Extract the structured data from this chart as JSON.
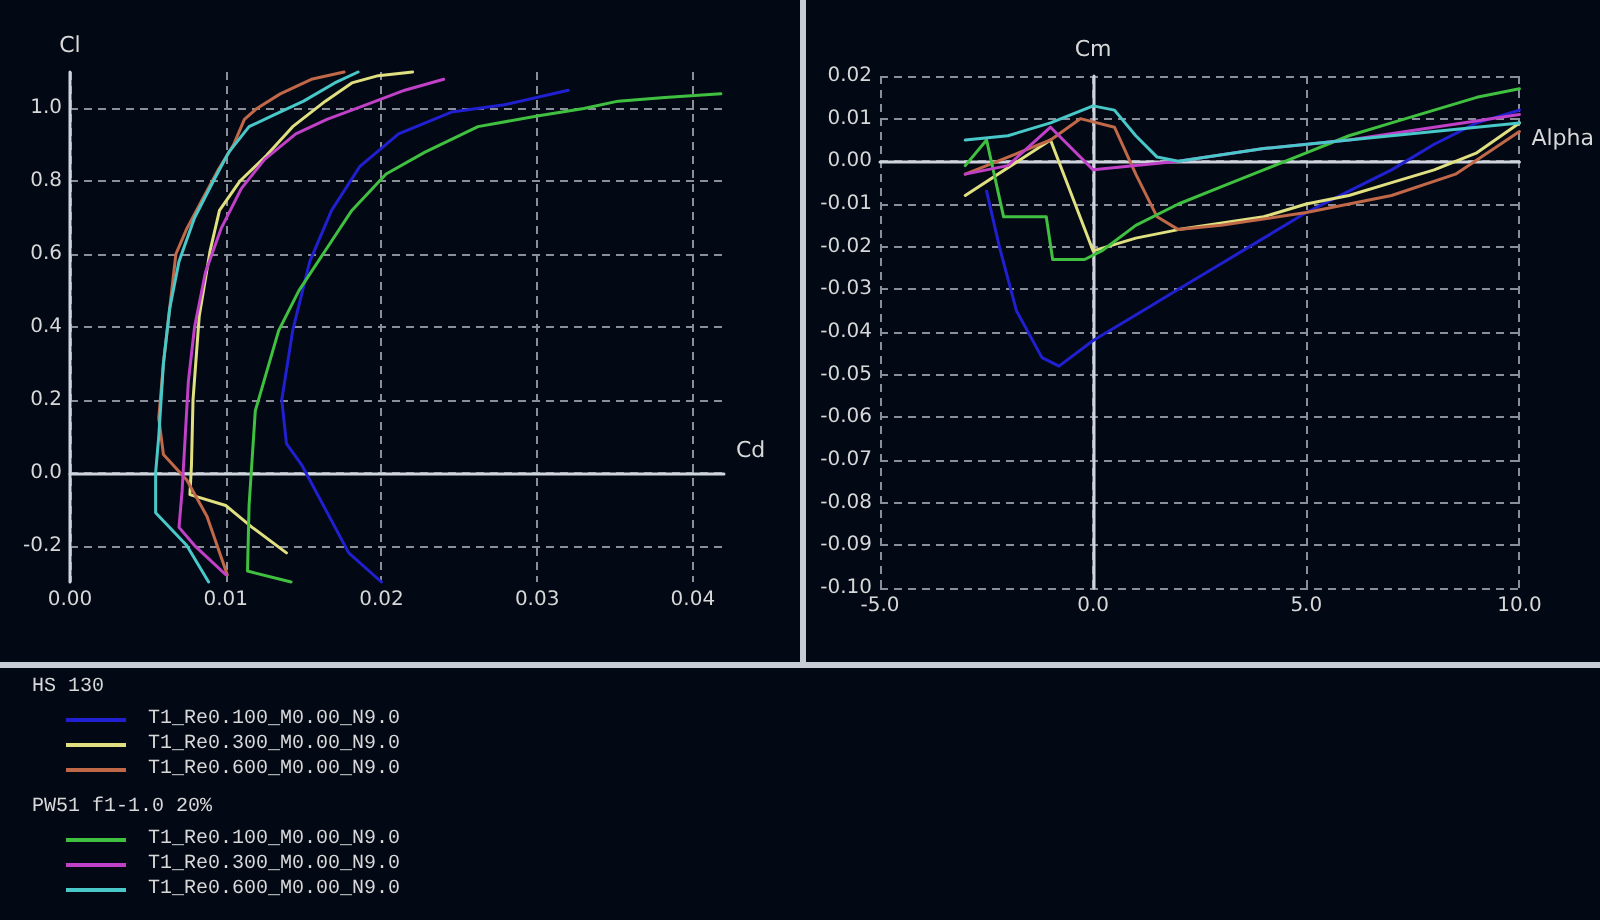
{
  "chart_data": [
    {
      "type": "line",
      "xlabel": "Cd",
      "ylabel": "Cl",
      "xlim": [
        0,
        0.042
      ],
      "ylim": [
        -0.3,
        1.1
      ],
      "xticks": [
        {
          "value": 0,
          "label": "0.00"
        },
        0.01,
        0.02,
        0.03,
        0.04
      ],
      "yticks": [
        -0.2,
        {
          "value": 0,
          "label": "0.0"
        },
        0.2,
        0.4,
        0.6,
        0.8,
        {
          "value": 1,
          "label": "1.0"
        }
      ],
      "grid": true,
      "legend": "bottom",
      "marker": "none",
      "line_style": "solid",
      "annotations": [
        "HS 130",
        "PW51 f1-1.0 20%"
      ],
      "series": [
        {
          "name": "T1_Re0.100_M0.00_N9.0",
          "color": "#2020d0",
          "x": [
            0.02,
            0.0179,
            0.0149,
            0.0139,
            0.0136,
            0.0143,
            0.0154,
            0.0168,
            0.0186,
            0.0211,
            0.0245,
            0.0279,
            0.032
          ],
          "values": [
            -0.3,
            -0.22,
            0.02,
            0.08,
            0.2,
            0.39,
            0.58,
            0.72,
            0.84,
            0.93,
            0.99,
            1.01,
            1.05
          ]
        },
        {
          "name": "T1_Re0.300_M0.00_N9.0",
          "color": "#e0e080",
          "x": [
            0.0139,
            0.0117,
            0.01,
            0.0077,
            0.0078,
            0.0079,
            0.0083,
            0.009,
            0.0096,
            0.0109,
            0.0126,
            0.0143,
            0.0164,
            0.0181,
            0.0198,
            0.022
          ],
          "values": [
            -0.22,
            -0.15,
            -0.09,
            -0.06,
            0.02,
            0.2,
            0.43,
            0.61,
            0.72,
            0.8,
            0.87,
            0.95,
            1.02,
            1.07,
            1.09,
            1.1
          ]
        },
        {
          "name": "T1_Re0.600_M0.00_N9.0",
          "color": "#c06848",
          "x": [
            0.0101,
            0.0088,
            0.0075,
            0.006,
            0.0057,
            0.006,
            0.0064,
            0.0068,
            0.0075,
            0.0085,
            0.0095,
            0.0105,
            0.0112,
            0.012,
            0.0135,
            0.0155,
            0.0176
          ],
          "values": [
            -0.28,
            -0.12,
            -0.02,
            0.05,
            0.15,
            0.3,
            0.45,
            0.6,
            0.67,
            0.75,
            0.83,
            0.9,
            0.97,
            1.0,
            1.04,
            1.08,
            1.1
          ]
        },
        {
          "name": "T1_Re0.100_M0.00_N9.0",
          "color": "#40c040",
          "x": [
            0.0142,
            0.0114,
            0.0115,
            0.0119,
            0.0134,
            0.0147,
            0.0164,
            0.0181,
            0.0203,
            0.0228,
            0.0262,
            0.0301,
            0.033,
            0.0352,
            0.0382,
            0.0418
          ],
          "values": [
            -0.3,
            -0.27,
            -0.09,
            0.17,
            0.39,
            0.5,
            0.61,
            0.72,
            0.82,
            0.88,
            0.95,
            0.98,
            1.0,
            1.02,
            1.03,
            1.04
          ]
        },
        {
          "name": "T1_Re0.300_M0.00_N9.0",
          "color": "#c040c8",
          "x": [
            0.01,
            0.008,
            0.007,
            0.0072,
            0.0074,
            0.0076,
            0.008,
            0.0087,
            0.0097,
            0.011,
            0.0125,
            0.0145,
            0.0165,
            0.019,
            0.0215,
            0.024
          ],
          "values": [
            -0.28,
            -0.2,
            -0.15,
            -0.05,
            0.1,
            0.25,
            0.4,
            0.55,
            0.67,
            0.78,
            0.86,
            0.93,
            0.97,
            1.01,
            1.05,
            1.08
          ]
        },
        {
          "name": "T1_Re0.600_M0.00_N9.0",
          "color": "#48c8c8",
          "x": [
            0.0089,
            0.0075,
            0.0055,
            0.0055,
            0.0057,
            0.006,
            0.0064,
            0.007,
            0.008,
            0.0092,
            0.0102,
            0.0115,
            0.013,
            0.015,
            0.017,
            0.0185
          ],
          "values": [
            -0.3,
            -0.2,
            -0.11,
            0.0,
            0.1,
            0.3,
            0.45,
            0.58,
            0.7,
            0.8,
            0.88,
            0.95,
            0.98,
            1.02,
            1.07,
            1.1
          ]
        }
      ]
    },
    {
      "type": "line",
      "xlabel": "Alpha",
      "ylabel": "Cm",
      "xlim": [
        -5,
        10
      ],
      "ylim": [
        -0.1,
        0.02
      ],
      "xticks": [
        {
          "value": -5,
          "label": "-5.0"
        },
        {
          "value": 0,
          "label": "0.0"
        },
        {
          "value": 5,
          "label": "5.0"
        },
        {
          "value": 10,
          "label": "10.0"
        }
      ],
      "yticks": [
        {
          "value": -0.1,
          "label": "-0.10"
        },
        -0.09,
        -0.08,
        -0.07,
        -0.06,
        -0.05,
        -0.04,
        -0.03,
        -0.02,
        -0.01,
        {
          "value": 0,
          "label": "0.00"
        },
        0.01,
        0.02
      ],
      "grid": true,
      "marker": "none",
      "line_style": "solid",
      "series": [
        {
          "color": "#2020d0",
          "x": [
            -2.5,
            -2.2,
            -1.8,
            -1.2,
            -0.8,
            0,
            1,
            2,
            3,
            4,
            5,
            6,
            7,
            8,
            9,
            10
          ],
          "values": [
            -0.007,
            -0.02,
            -0.035,
            -0.046,
            -0.048,
            -0.042,
            -0.036,
            -0.03,
            -0.024,
            -0.018,
            -0.012,
            -0.007,
            -0.002,
            0.004,
            0.009,
            0.012
          ]
        },
        {
          "color": "#e0e080",
          "x": [
            -3,
            -1,
            0,
            1,
            2,
            4,
            5,
            6,
            7,
            8,
            9,
            10
          ],
          "values": [
            -0.008,
            0.005,
            -0.021,
            -0.018,
            -0.016,
            -0.013,
            -0.01,
            -0.008,
            -0.005,
            -0.002,
            0.002,
            0.009
          ]
        },
        {
          "color": "#c06848",
          "x": [
            -3,
            -1,
            -0.3,
            0.5,
            1,
            1.5,
            2,
            3,
            5,
            7,
            8.5,
            10
          ],
          "values": [
            -0.003,
            0.005,
            0.01,
            0.008,
            -0.003,
            -0.013,
            -0.016,
            -0.015,
            -0.012,
            -0.008,
            -0.003,
            0.007
          ]
        },
        {
          "color": "#40c040",
          "x": [
            -3,
            -2.5,
            -2.1,
            -1.1,
            -0.95,
            -0.2,
            0.2,
            1,
            2,
            3,
            4,
            5,
            6,
            7,
            8,
            9,
            10
          ],
          "values": [
            -0.001,
            0.005,
            -0.013,
            -0.013,
            -0.023,
            -0.023,
            -0.021,
            -0.015,
            -0.01,
            -0.006,
            -0.002,
            0.002,
            0.006,
            0.009,
            0.012,
            0.015,
            0.017
          ]
        },
        {
          "color": "#c040c8",
          "x": [
            -3,
            -2,
            -1,
            0,
            2,
            4,
            6,
            8,
            10
          ],
          "values": [
            -0.003,
            -0.001,
            0.008,
            -0.002,
            0.0,
            0.003,
            0.005,
            0.008,
            0.011
          ]
        },
        {
          "color": "#48c8c8",
          "x": [
            -3,
            -2,
            -1,
            0,
            0.5,
            1,
            1.5,
            2,
            4,
            6,
            8,
            10
          ],
          "values": [
            0.005,
            0.006,
            0.009,
            0.013,
            0.012,
            0.006,
            0.001,
            0.0,
            0.003,
            0.005,
            0.007,
            0.009
          ]
        }
      ]
    }
  ]
}
